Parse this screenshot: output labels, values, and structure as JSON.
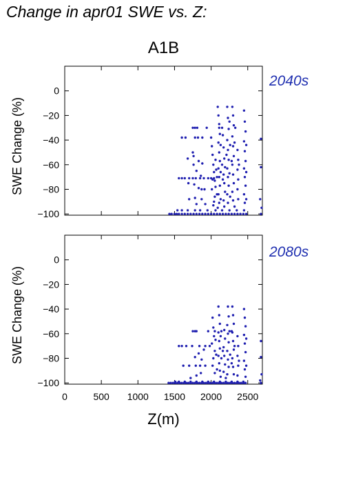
{
  "figure_title": "Change in apr01 SWE vs. Z:",
  "scenario": "A1B",
  "colors": {
    "points": "#1f1fb0",
    "period_label": "#1f2fb0",
    "axis": "#000000"
  },
  "chart_data": [
    {
      "type": "scatter",
      "title": "2040s",
      "xlabel": "Z(m)",
      "ylabel": "SWE Change (%)",
      "xlim": [
        0,
        2700
      ],
      "ylim": [
        -101,
        20
      ],
      "xticks": [
        0,
        500,
        1000,
        1500,
        2000,
        2500
      ],
      "yticks": [
        -100,
        -80,
        -60,
        -40,
        -20,
        0
      ],
      "xtick_labels_shown": false,
      "grid": false,
      "points": [
        [
          1430,
          -100
        ],
        [
          1460,
          -100
        ],
        [
          1500,
          -100
        ],
        [
          1530,
          -100
        ],
        [
          1560,
          -100
        ],
        [
          1600,
          -100
        ],
        [
          1640,
          -100
        ],
        [
          1680,
          -100
        ],
        [
          1720,
          -100
        ],
        [
          1760,
          -100
        ],
        [
          1800,
          -100
        ],
        [
          1840,
          -100
        ],
        [
          1880,
          -100
        ],
        [
          1920,
          -100
        ],
        [
          1960,
          -100
        ],
        [
          2000,
          -100
        ],
        [
          2040,
          -100
        ],
        [
          2080,
          -100
        ],
        [
          2120,
          -100
        ],
        [
          2160,
          -100
        ],
        [
          2200,
          -100
        ],
        [
          2240,
          -100
        ],
        [
          2280,
          -100
        ],
        [
          2320,
          -100
        ],
        [
          2360,
          -100
        ],
        [
          2400,
          -100
        ],
        [
          2440,
          -100
        ],
        [
          2480,
          -100
        ],
        [
          2680,
          -100
        ],
        [
          1540,
          -97
        ],
        [
          1600,
          -97
        ],
        [
          1680,
          -97
        ],
        [
          1780,
          -97
        ],
        [
          1850,
          -97
        ],
        [
          1950,
          -97
        ],
        [
          2060,
          -97
        ],
        [
          2150,
          -97
        ],
        [
          2250,
          -97
        ],
        [
          2350,
          -97
        ],
        [
          2450,
          -97
        ],
        [
          1560,
          -71
        ],
        [
          1600,
          -71
        ],
        [
          1640,
          -71
        ],
        [
          1700,
          -71
        ],
        [
          1750,
          -71
        ],
        [
          1790,
          -71
        ],
        [
          1850,
          -71
        ],
        [
          1900,
          -71
        ],
        [
          1960,
          -71
        ],
        [
          2000,
          -71
        ],
        [
          2040,
          -71
        ],
        [
          1600,
          -38
        ],
        [
          1650,
          -38
        ],
        [
          1780,
          -38
        ],
        [
          1820,
          -38
        ],
        [
          1880,
          -38
        ],
        [
          2000,
          -38
        ],
        [
          1750,
          -30
        ],
        [
          1780,
          -30
        ],
        [
          1810,
          -30
        ],
        [
          1940,
          -30
        ],
        [
          2110,
          -30
        ],
        [
          2150,
          -30
        ],
        [
          2330,
          -30
        ],
        [
          1680,
          -55
        ],
        [
          1760,
          -53
        ],
        [
          1830,
          -57
        ],
        [
          1760,
          -60
        ],
        [
          1800,
          -65
        ],
        [
          1860,
          -69
        ],
        [
          1690,
          -75
        ],
        [
          1770,
          -76
        ],
        [
          1830,
          -79
        ],
        [
          1870,
          -80
        ],
        [
          1780,
          -87
        ],
        [
          1870,
          -88
        ],
        [
          1700,
          -88
        ],
        [
          1920,
          -92
        ],
        [
          1800,
          -92
        ],
        [
          1750,
          -50
        ],
        [
          1880,
          -59
        ],
        [
          1910,
          -80
        ],
        [
          2010,
          -45
        ],
        [
          2020,
          -52
        ],
        [
          2030,
          -60
        ],
        [
          2040,
          -66
        ],
        [
          2050,
          -73
        ],
        [
          2010,
          -80
        ],
        [
          2050,
          -86
        ],
        [
          2030,
          -93
        ],
        [
          2060,
          -56
        ],
        [
          2070,
          -64
        ],
        [
          2080,
          -70
        ],
        [
          2020,
          -72
        ],
        [
          2060,
          -78
        ],
        [
          2080,
          -84
        ],
        [
          2040,
          -90
        ],
        [
          2090,
          -95
        ],
        [
          2090,
          -13
        ],
        [
          2100,
          -20
        ],
        [
          2110,
          -27
        ],
        [
          2120,
          -35
        ],
        [
          2100,
          -42
        ],
        [
          2110,
          -50
        ],
        [
          2120,
          -57
        ],
        [
          2100,
          -63
        ],
        [
          2110,
          -70
        ],
        [
          2120,
          -77
        ],
        [
          2100,
          -84
        ],
        [
          2110,
          -91
        ],
        [
          2130,
          -44
        ],
        [
          2130,
          -66
        ],
        [
          2130,
          -88
        ],
        [
          2170,
          -46
        ],
        [
          2180,
          -55
        ],
        [
          2190,
          -62
        ],
        [
          2170,
          -68
        ],
        [
          2180,
          -75
        ],
        [
          2190,
          -82
        ],
        [
          2170,
          -89
        ],
        [
          2180,
          -94
        ],
        [
          2160,
          -36
        ],
        [
          2150,
          -60
        ],
        [
          2160,
          -72
        ],
        [
          2220,
          -13
        ],
        [
          2230,
          -22
        ],
        [
          2240,
          -31
        ],
        [
          2220,
          -40
        ],
        [
          2230,
          -48
        ],
        [
          2240,
          -56
        ],
        [
          2220,
          -63
        ],
        [
          2230,
          -70
        ],
        [
          2240,
          -77
        ],
        [
          2220,
          -84
        ],
        [
          2230,
          -91
        ],
        [
          2250,
          -25
        ],
        [
          2260,
          -44
        ],
        [
          2250,
          -67
        ],
        [
          2260,
          -86
        ],
        [
          2210,
          -52
        ],
        [
          2290,
          -13
        ],
        [
          2300,
          -20
        ],
        [
          2310,
          -28
        ],
        [
          2290,
          -37
        ],
        [
          2300,
          -45
        ],
        [
          2310,
          -53
        ],
        [
          2290,
          -60
        ],
        [
          2300,
          -68
        ],
        [
          2310,
          -75
        ],
        [
          2290,
          -82
        ],
        [
          2300,
          -89
        ],
        [
          2320,
          -94
        ],
        [
          2320,
          -42
        ],
        [
          2280,
          -57
        ],
        [
          2360,
          -48
        ],
        [
          2370,
          -56
        ],
        [
          2360,
          -64
        ],
        [
          2370,
          -72
        ],
        [
          2360,
          -80
        ],
        [
          2370,
          -88
        ],
        [
          2380,
          -60
        ],
        [
          2450,
          -16
        ],
        [
          2460,
          -25
        ],
        [
          2470,
          -33
        ],
        [
          2450,
          -41
        ],
        [
          2460,
          -49
        ],
        [
          2470,
          -57
        ],
        [
          2450,
          -63
        ],
        [
          2460,
          -70
        ],
        [
          2470,
          -77
        ],
        [
          2450,
          -84
        ],
        [
          2460,
          -91
        ],
        [
          2480,
          -44
        ],
        [
          2480,
          -66
        ],
        [
          2480,
          -88
        ],
        [
          2680,
          -39
        ],
        [
          2680,
          -62
        ],
        [
          2690,
          -95
        ],
        [
          2670,
          -88
        ]
      ]
    },
    {
      "type": "scatter",
      "title": "2080s",
      "xlabel": "Z(m)",
      "ylabel": "SWE Change (%)",
      "xlim": [
        0,
        2700
      ],
      "ylim": [
        -101,
        20
      ],
      "xticks": [
        0,
        500,
        1000,
        1500,
        2000,
        2500
      ],
      "xtick_labels": [
        "0",
        "500",
        "1000",
        "1500",
        "2000",
        "2500"
      ],
      "yticks": [
        -100,
        -80,
        -60,
        -40,
        -20,
        0
      ],
      "grid": false,
      "points": [
        [
          1420,
          -100
        ],
        [
          1450,
          -100
        ],
        [
          1480,
          -100
        ],
        [
          1510,
          -100
        ],
        [
          1540,
          -100
        ],
        [
          1570,
          -100
        ],
        [
          1600,
          -100
        ],
        [
          1630,
          -100
        ],
        [
          1660,
          -100
        ],
        [
          1690,
          -100
        ],
        [
          1720,
          -100
        ],
        [
          1750,
          -100
        ],
        [
          1780,
          -100
        ],
        [
          1810,
          -100
        ],
        [
          1840,
          -100
        ],
        [
          1870,
          -100
        ],
        [
          1900,
          -100
        ],
        [
          1930,
          -100
        ],
        [
          1960,
          -100
        ],
        [
          1990,
          -100
        ],
        [
          2020,
          -100
        ],
        [
          2050,
          -100
        ],
        [
          2080,
          -100
        ],
        [
          2110,
          -100
        ],
        [
          2140,
          -100
        ],
        [
          2170,
          -100
        ],
        [
          2200,
          -100
        ],
        [
          2230,
          -100
        ],
        [
          2260,
          -100
        ],
        [
          2290,
          -100
        ],
        [
          2320,
          -100
        ],
        [
          2350,
          -100
        ],
        [
          2380,
          -100
        ],
        [
          2410,
          -100
        ],
        [
          2440,
          -100
        ],
        [
          2470,
          -100
        ],
        [
          2680,
          -100
        ],
        [
          1510,
          -99
        ],
        [
          1560,
          -99
        ],
        [
          1640,
          -99
        ],
        [
          1720,
          -99
        ],
        [
          1800,
          -99
        ],
        [
          1880,
          -99
        ],
        [
          1960,
          -99
        ],
        [
          2040,
          -99
        ],
        [
          2120,
          -99
        ],
        [
          2200,
          -99
        ],
        [
          2280,
          -99
        ],
        [
          2360,
          -99
        ],
        [
          2440,
          -99
        ],
        [
          1560,
          -70
        ],
        [
          1600,
          -70
        ],
        [
          1660,
          -70
        ],
        [
          1740,
          -70
        ],
        [
          1840,
          -70
        ],
        [
          1920,
          -70
        ],
        [
          1980,
          -70
        ],
        [
          1750,
          -58
        ],
        [
          1780,
          -58
        ],
        [
          1800,
          -58
        ],
        [
          1960,
          -58
        ],
        [
          2050,
          -58
        ],
        [
          2140,
          -58
        ],
        [
          2280,
          -58
        ],
        [
          1620,
          -86
        ],
        [
          1700,
          -86
        ],
        [
          1790,
          -86
        ],
        [
          1850,
          -86
        ],
        [
          1920,
          -86
        ],
        [
          1720,
          -96
        ],
        [
          1800,
          -94
        ],
        [
          1860,
          -92
        ],
        [
          1780,
          -79
        ],
        [
          1830,
          -76
        ],
        [
          1870,
          -81
        ],
        [
          1900,
          -73
        ],
        [
          2020,
          -47
        ],
        [
          2030,
          -55
        ],
        [
          2040,
          -62
        ],
        [
          2010,
          -68
        ],
        [
          2050,
          -74
        ],
        [
          2030,
          -80
        ],
        [
          2020,
          -86
        ],
        [
          2050,
          -92
        ],
        [
          2060,
          -65
        ],
        [
          2070,
          -77
        ],
        [
          2080,
          -89
        ],
        [
          2100,
          -38
        ],
        [
          2110,
          -45
        ],
        [
          2120,
          -52
        ],
        [
          2100,
          -59
        ],
        [
          2110,
          -66
        ],
        [
          2120,
          -72
        ],
        [
          2100,
          -78
        ],
        [
          2110,
          -84
        ],
        [
          2120,
          -90
        ],
        [
          2130,
          -95
        ],
        [
          2130,
          -62
        ],
        [
          2140,
          -80
        ],
        [
          2180,
          -57
        ],
        [
          2190,
          -64
        ],
        [
          2170,
          -71
        ],
        [
          2180,
          -78
        ],
        [
          2190,
          -85
        ],
        [
          2170,
          -91
        ],
        [
          2200,
          -96
        ],
        [
          2160,
          -74
        ],
        [
          2230,
          -38
        ],
        [
          2240,
          -46
        ],
        [
          2220,
          -53
        ],
        [
          2230,
          -60
        ],
        [
          2240,
          -67
        ],
        [
          2220,
          -74
        ],
        [
          2230,
          -81
        ],
        [
          2240,
          -87
        ],
        [
          2220,
          -93
        ],
        [
          2250,
          -58
        ],
        [
          2260,
          -77
        ],
        [
          2290,
          -38
        ],
        [
          2300,
          -45
        ],
        [
          2310,
          -52
        ],
        [
          2290,
          -59
        ],
        [
          2300,
          -66
        ],
        [
          2310,
          -73
        ],
        [
          2290,
          -80
        ],
        [
          2300,
          -87
        ],
        [
          2310,
          -93
        ],
        [
          2320,
          -70
        ],
        [
          2280,
          -84
        ],
        [
          2360,
          -62
        ],
        [
          2370,
          -70
        ],
        [
          2360,
          -78
        ],
        [
          2370,
          -86
        ],
        [
          2360,
          -94
        ],
        [
          2380,
          -82
        ],
        [
          2450,
          -40
        ],
        [
          2460,
          -47
        ],
        [
          2470,
          -54
        ],
        [
          2450,
          -61
        ],
        [
          2460,
          -68
        ],
        [
          2470,
          -75
        ],
        [
          2450,
          -82
        ],
        [
          2460,
          -89
        ],
        [
          2470,
          -95
        ],
        [
          2480,
          -64
        ],
        [
          2480,
          -86
        ],
        [
          2680,
          -66
        ],
        [
          2680,
          -79
        ],
        [
          2690,
          -93
        ],
        [
          2670,
          -98
        ]
      ]
    }
  ]
}
